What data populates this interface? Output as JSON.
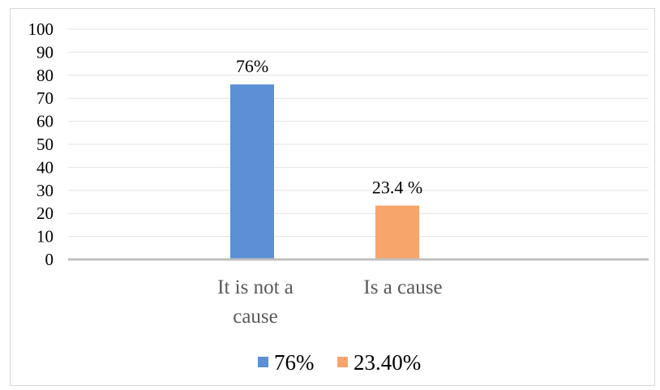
{
  "chart_data": {
    "type": "bar",
    "categories": [
      {
        "label_line1": "It is not a",
        "label_line2": "cause"
      },
      {
        "label_line1": "Is a cause",
        "label_line2": ""
      }
    ],
    "series": [
      {
        "name": "76%",
        "values": [
          76,
          0
        ],
        "color": "#5b8fd6",
        "data_label": "76%"
      },
      {
        "name": "23.40%",
        "values": [
          0,
          23.4
        ],
        "color": "#f8a56c",
        "data_label": "23.4 %"
      }
    ],
    "yticks": [
      "0",
      "10",
      "20",
      "30",
      "40",
      "50",
      "60",
      "70",
      "80",
      "90",
      "100"
    ],
    "ylim": [
      0,
      100
    ],
    "grid": true,
    "legend_position": "bottom"
  }
}
